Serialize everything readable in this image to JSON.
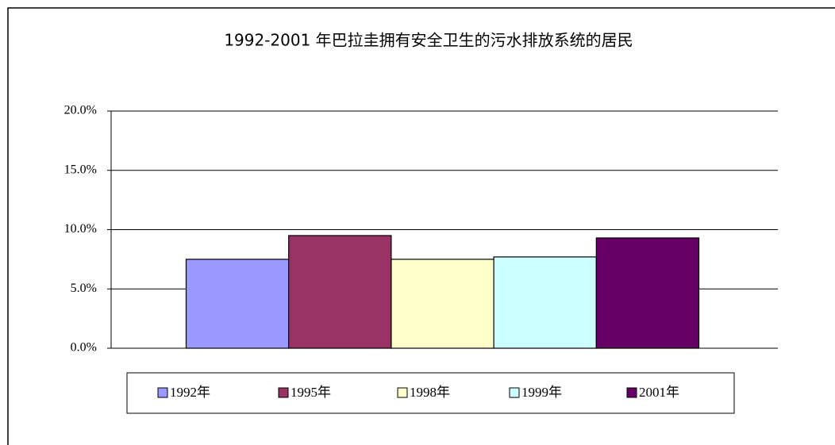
{
  "chart_data": {
    "type": "bar",
    "title": "1992-2001 年巴拉圭拥有安全卫生的污水排放系统的居民",
    "series": [
      {
        "name": "1992年",
        "color": "#9999ff",
        "values": [
          7.5
        ]
      },
      {
        "name": "1995年",
        "color": "#993366",
        "values": [
          9.5
        ]
      },
      {
        "name": "1998年",
        "color": "#ffffcc",
        "values": [
          7.5
        ]
      },
      {
        "name": "1999年",
        "color": "#ccffff",
        "values": [
          7.7
        ]
      },
      {
        "name": "2001年",
        "color": "#660066",
        "values": [
          9.3
        ]
      }
    ],
    "ylim": [
      0,
      20
    ],
    "yticks": [
      {
        "value": 0,
        "label": "0.0%"
      },
      {
        "value": 5,
        "label": "5.0%"
      },
      {
        "value": 10,
        "label": "10.0%"
      },
      {
        "value": 15,
        "label": "15.0%"
      },
      {
        "value": 20,
        "label": "20.0%"
      }
    ],
    "grid": true,
    "legend": "bottom"
  }
}
